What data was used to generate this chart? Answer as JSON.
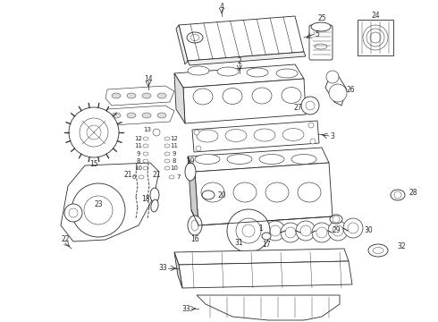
{
  "bg_color": "#ffffff",
  "line_color": "#2a2a2a",
  "fig_width": 4.9,
  "fig_height": 3.6,
  "dpi": 100
}
